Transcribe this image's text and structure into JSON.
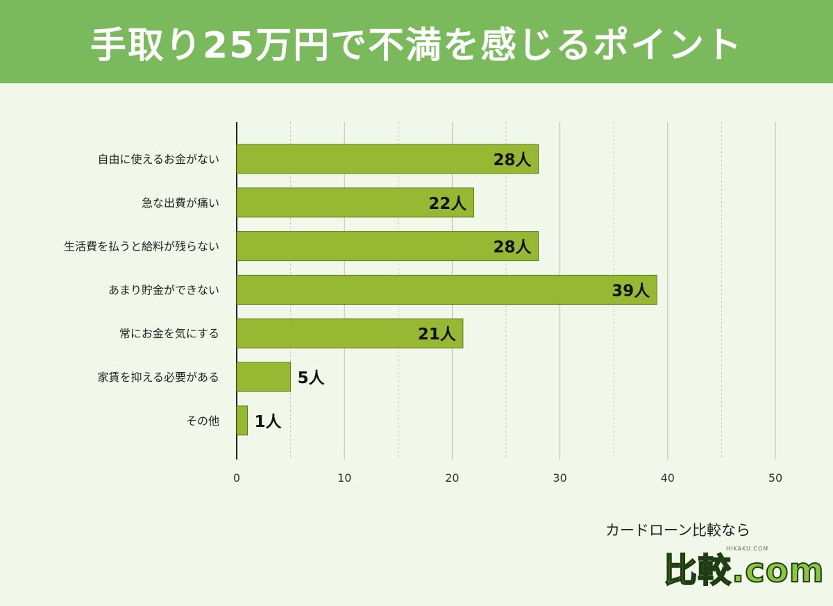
{
  "chart_data": {
    "type": "bar",
    "orientation": "horizontal",
    "title": "手取り25万円で不満を感じるポイント",
    "categories": [
      "自由に使えるお金がない",
      "急な出費が痛い",
      "生活費を払うと給料が残らない",
      "あまり貯金ができない",
      "常にお金を気にする",
      "家賃を抑える必要がある",
      "その他"
    ],
    "values": [
      28,
      22,
      28,
      39,
      21,
      5,
      1
    ],
    "value_labels": [
      "28人",
      "22人",
      "28人",
      "39人",
      "21人",
      "5人",
      "1人"
    ],
    "xlim": [
      0,
      50
    ],
    "xticks": [
      0,
      10,
      20,
      30,
      40,
      50
    ],
    "xtick_labels": [
      "0",
      "10",
      "20",
      "30",
      "40",
      "50"
    ],
    "grid": true,
    "bar_color": "#97b832",
    "xlabel": "",
    "ylabel": ""
  },
  "branding": {
    "caption": "カードローン比較なら",
    "small_text": "HIKAKU.COM",
    "logo": "比較.com"
  },
  "colors": {
    "header": "#7aba5c",
    "background": "#f2f8e9",
    "bar_stroke": "#5c7a1c"
  }
}
